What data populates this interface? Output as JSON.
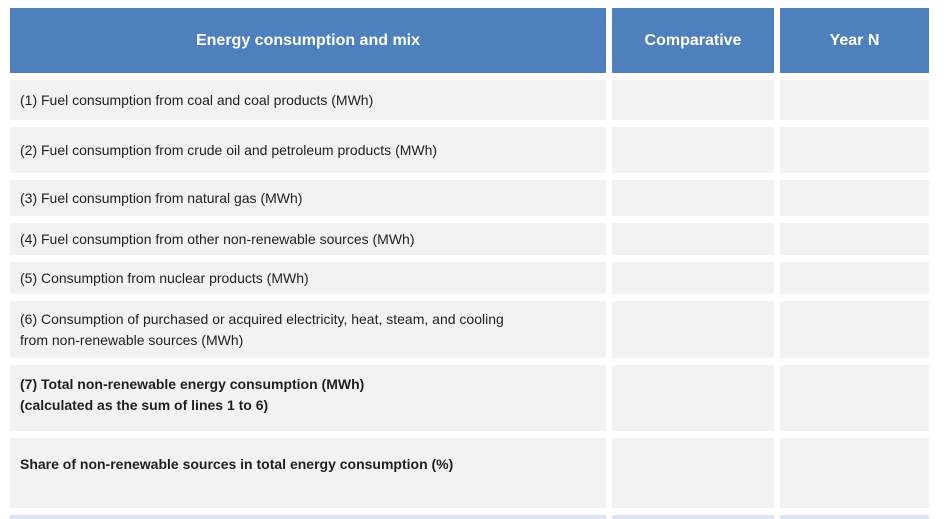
{
  "table": {
    "header": {
      "energy": "Energy consumption and mix",
      "comparative": "Comparative",
      "year_n": "Year N"
    },
    "rows": [
      {
        "label": "(1) Fuel consumption from coal and coal products (MWh)",
        "comparative": "",
        "year_n": ""
      },
      {
        "label": "(2) Fuel consumption from crude oil and petroleum products (MWh)",
        "comparative": "",
        "year_n": ""
      },
      {
        "label": "(3) Fuel consumption from natural gas (MWh)",
        "comparative": "",
        "year_n": ""
      },
      {
        "label": "(4) Fuel consumption from other non-renewable sources (MWh)",
        "comparative": "",
        "year_n": ""
      },
      {
        "label": "(5) Consumption from nuclear products (MWh)",
        "comparative": "",
        "year_n": ""
      },
      {
        "label": "(6) Consumption of purchased or acquired electricity, heat, steam, and cooling\nfrom non-renewable sources (MWh)",
        "comparative": "",
        "year_n": ""
      },
      {
        "label": "(7) Total non-renewable energy consumption (MWh)\n(calculated as the sum of lines 1 to 6)",
        "comparative": "",
        "year_n": ""
      },
      {
        "label": "Share of non-renewable sources in total energy consumption (%)",
        "comparative": "",
        "year_n": ""
      }
    ],
    "colors": {
      "header_bg": "#4e80bd",
      "header_text": "#ffffff",
      "row_bg": "#f2f2f2",
      "partial_row_bg": "#dce6f2"
    }
  }
}
